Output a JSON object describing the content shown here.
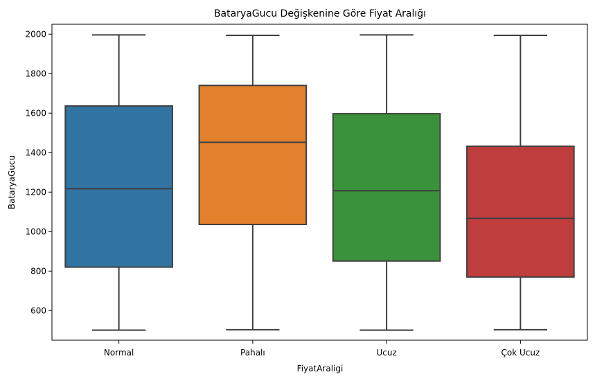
{
  "chart_data": {
    "type": "boxplot",
    "title": "BataryaGucu Değişkenine Göre Fiyat Aralığı",
    "xlabel": "FiyatAraligi",
    "ylabel": "BataryaGucu",
    "ylim": [
      450,
      2050
    ],
    "yticks": [
      600,
      800,
      1000,
      1200,
      1400,
      1600,
      1800,
      2000
    ],
    "categories": [
      "Normal",
      "Pahalı",
      "Ucuz",
      "Çok Ucuz"
    ],
    "colors": [
      "#3274a1",
      "#e1812c",
      "#3a923a",
      "#c03d3e"
    ],
    "boxes": [
      {
        "whisker_low": 501,
        "q1": 820,
        "median": 1217,
        "q3": 1636,
        "whisker_high": 1996
      },
      {
        "whisker_low": 503,
        "q1": 1036,
        "median": 1452,
        "q3": 1740,
        "whisker_high": 1994
      },
      {
        "whisker_low": 501,
        "q1": 851,
        "median": 1207,
        "q3": 1597,
        "whisker_high": 1996
      },
      {
        "whisker_low": 503,
        "q1": 770,
        "median": 1067,
        "q3": 1432,
        "whisker_high": 1994
      }
    ]
  }
}
